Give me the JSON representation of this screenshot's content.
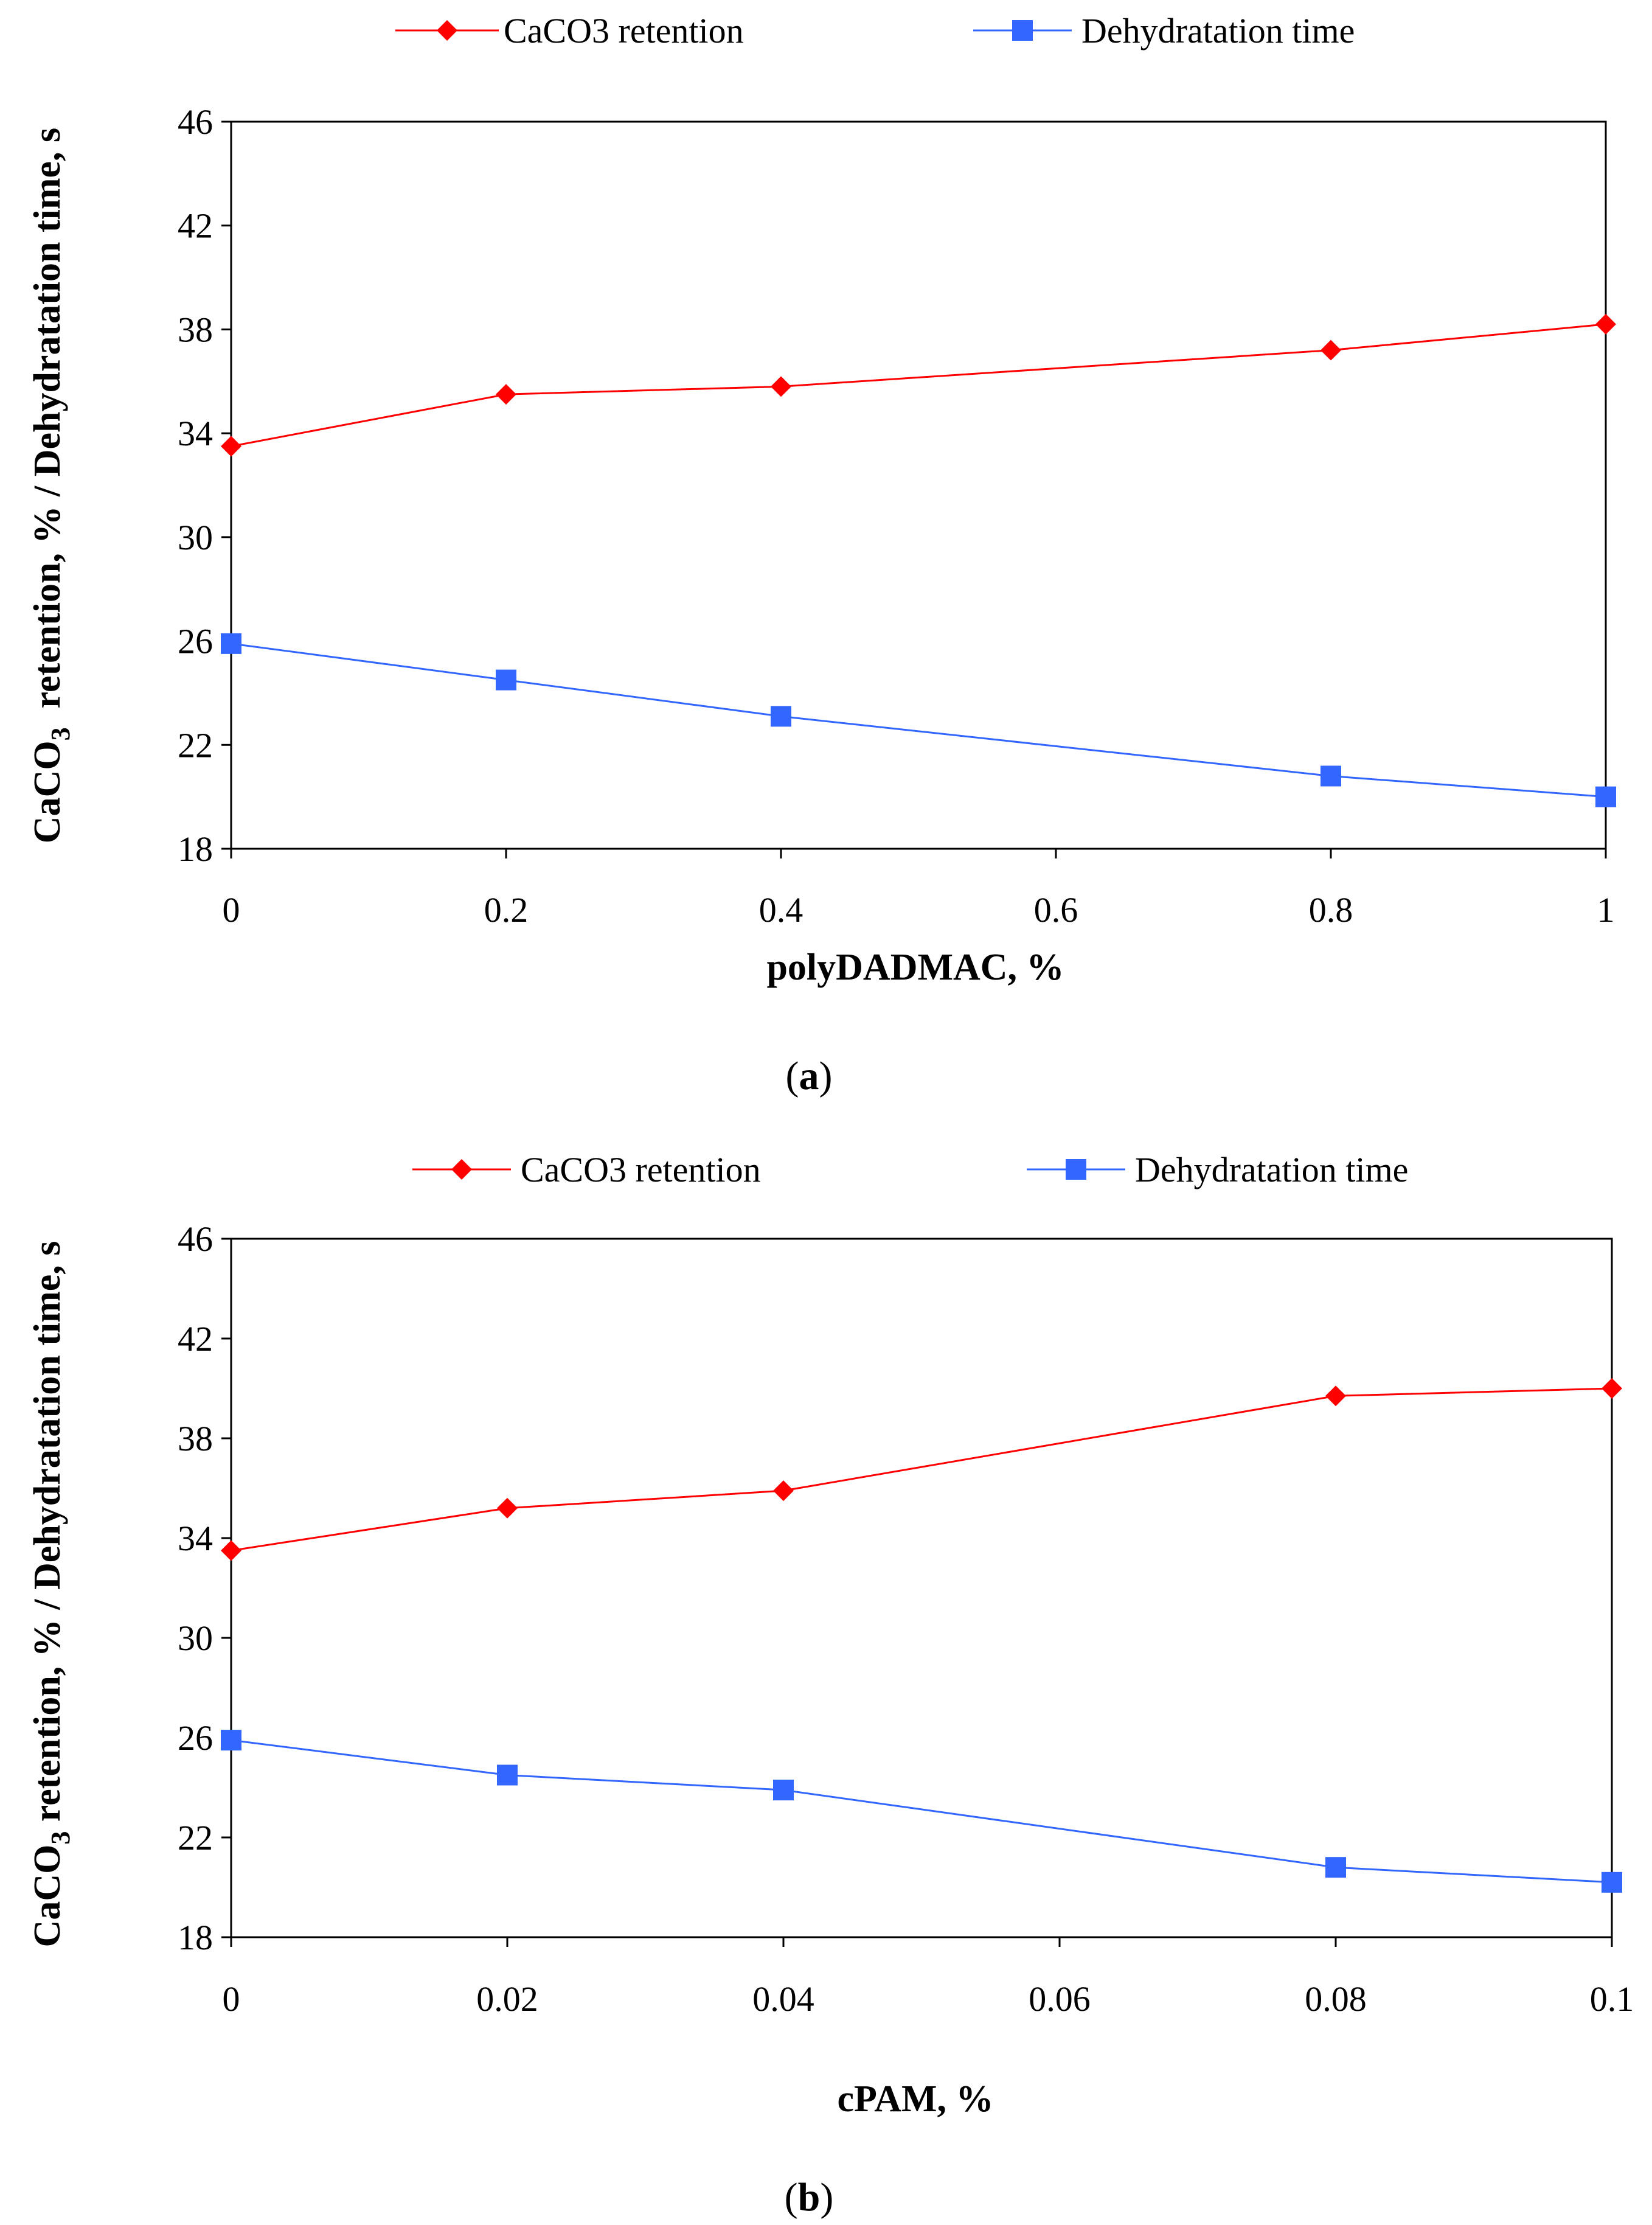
{
  "chart_data": [
    {
      "type": "line",
      "panel_label": "a",
      "xlabel": "polyDADMAC, %",
      "ylabel_parts": [
        "CaCO",
        "3",
        "  retention, % / Dehydratation time, s"
      ],
      "ylim": [
        18,
        46
      ],
      "yticks": [
        18,
        22,
        26,
        30,
        34,
        38,
        42,
        46
      ],
      "xlim": [
        0,
        1
      ],
      "xticks": [
        "0",
        "0.2",
        "0.4",
        "0.6",
        "0.8",
        "1"
      ],
      "xtick_values": [
        0,
        0.2,
        0.4,
        0.6,
        0.8,
        1
      ],
      "legend_position": "top",
      "series": [
        {
          "name": "CaCO3 retention",
          "marker": "diamond",
          "color": "#ff0000",
          "x": [
            0,
            0.2,
            0.4,
            0.8,
            1
          ],
          "values": [
            33.5,
            35.5,
            35.8,
            37.2,
            38.2
          ]
        },
        {
          "name": "Dehydratation time",
          "marker": "square",
          "color": "#3366ff",
          "x": [
            0,
            0.2,
            0.4,
            0.8,
            1
          ],
          "values": [
            25.9,
            24.5,
            23.1,
            20.8,
            20.0
          ]
        }
      ]
    },
    {
      "type": "line",
      "panel_label": "b",
      "xlabel": "cPAM, %",
      "ylabel_parts": [
        "CaCO",
        "3",
        " retention, % / Dehydratation time, s"
      ],
      "ylim": [
        18,
        46
      ],
      "yticks": [
        18,
        22,
        26,
        30,
        34,
        38,
        42,
        46
      ],
      "xlim": [
        0,
        0.1
      ],
      "xticks": [
        "0",
        "0.02",
        "0.04",
        "0.06",
        "0.08",
        "0.1"
      ],
      "xtick_values": [
        0,
        0.02,
        0.04,
        0.06,
        0.08,
        0.1
      ],
      "legend_position": "top",
      "series": [
        {
          "name": "CaCO3 retention",
          "marker": "diamond",
          "color": "#ff0000",
          "x": [
            0,
            0.02,
            0.04,
            0.08,
            0.1
          ],
          "values": [
            33.5,
            35.2,
            35.9,
            39.7,
            40.0
          ]
        },
        {
          "name": "Dehydratation time",
          "marker": "square",
          "color": "#3366ff",
          "x": [
            0,
            0.02,
            0.04,
            0.08,
            0.1
          ],
          "values": [
            25.9,
            24.5,
            23.9,
            20.8,
            20.2
          ]
        }
      ]
    }
  ]
}
